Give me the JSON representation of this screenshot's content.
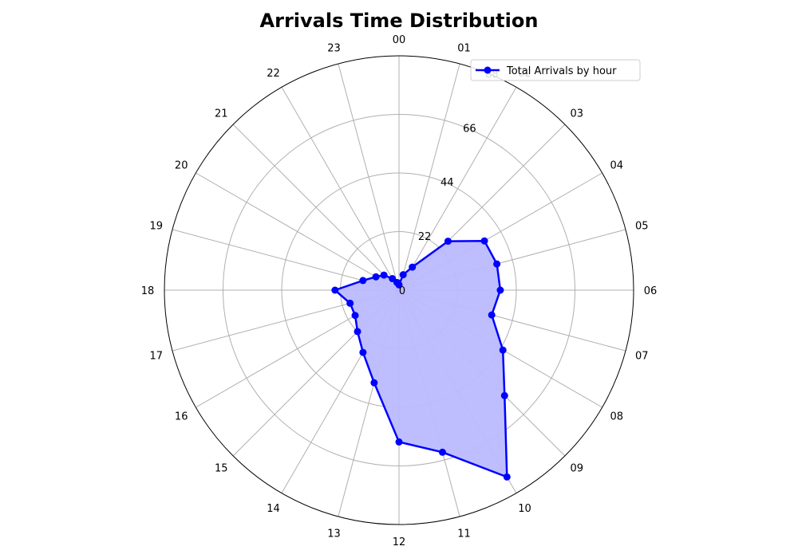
{
  "chart_data": {
    "type": "radar",
    "title": "Arrivals Time Distribution",
    "categories": [
      "00",
      "01",
      "02",
      "03",
      "04",
      "05",
      "06",
      "07",
      "08",
      "09",
      "10",
      "11",
      "12",
      "13",
      "14",
      "15",
      "16",
      "17",
      "18",
      "19",
      "20",
      "21",
      "22",
      "23"
    ],
    "radial_ticks": [
      "0",
      "22",
      "44",
      "66",
      "88"
    ],
    "rlim": [
      0,
      88
    ],
    "series": [
      {
        "name": "Total Arrivals by hour",
        "color": "#0000ff",
        "fill": "#bbbbff",
        "values": [
          2,
          6,
          10,
          26,
          37,
          38,
          38,
          36,
          45,
          56,
          81,
          63,
          57,
          36,
          27,
          22,
          19,
          19,
          24,
          14,
          10,
          8,
          5,
          3
        ]
      }
    ],
    "grid": true,
    "legend_position": "top-right"
  }
}
